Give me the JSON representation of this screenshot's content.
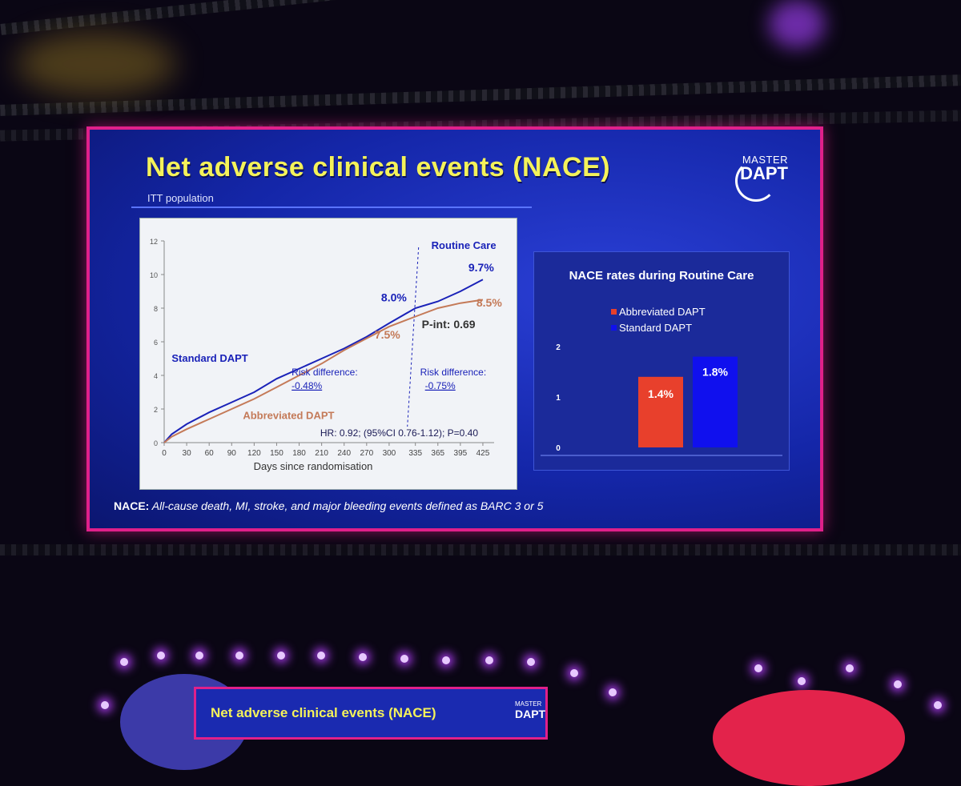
{
  "slide": {
    "title": "Net adverse clinical events (NACE)",
    "subtitle": "ITT population",
    "logo_line1": "MASTER",
    "logo_line2": "DAPT",
    "footer_label": "NACE:",
    "footer_text": " All-cause death, MI, stroke, and major bleeding events defined as BARC 3 or 5"
  },
  "mini_screen": {
    "title": "Net adverse clinical events (NACE)",
    "logo_line1": "MASTER",
    "logo_line2": "DAPT"
  },
  "colors": {
    "standard": "#1a22b8",
    "abbreviated": "#c47a58",
    "abbreviated_bar": "#e8402c",
    "standard_bar": "#1010ee",
    "title_yellow": "#f4f25a"
  },
  "chart_data": [
    {
      "type": "line",
      "title": "Routine Care",
      "xlabel": "Days since randomisation",
      "ylabel": "",
      "x_ticks": [
        0,
        30,
        60,
        90,
        120,
        150,
        180,
        210,
        240,
        270,
        300,
        335,
        365,
        395,
        425
      ],
      "y_ticks": [
        0,
        2,
        4,
        6,
        8,
        10,
        12
      ],
      "xlim": [
        0,
        440
      ],
      "ylim": [
        0,
        12
      ],
      "divider_day": 335,
      "series": [
        {
          "name": "Standard DAPT",
          "x": [
            0,
            10,
            30,
            60,
            90,
            120,
            150,
            180,
            210,
            240,
            270,
            300,
            335,
            365,
            395,
            425
          ],
          "values": [
            0,
            0.5,
            1.1,
            1.8,
            2.4,
            3.0,
            3.8,
            4.4,
            5.0,
            5.6,
            6.3,
            7.1,
            8.0,
            8.4,
            9.0,
            9.7
          ]
        },
        {
          "name": "Abbreviated DAPT",
          "x": [
            0,
            10,
            30,
            60,
            90,
            120,
            150,
            180,
            210,
            240,
            270,
            300,
            335,
            365,
            395,
            425
          ],
          "values": [
            0,
            0.35,
            0.8,
            1.4,
            2.0,
            2.6,
            3.3,
            4.0,
            4.7,
            5.5,
            6.2,
            6.9,
            7.5,
            8.0,
            8.3,
            8.5
          ]
        }
      ],
      "labels": {
        "standard_name": "Standard DAPT",
        "abbreviated_name": "Abbreviated DAPT",
        "std_335": "8.0%",
        "abb_335": "7.5%",
        "std_end": "9.7%",
        "abb_end": "8.5%",
        "p_int": "P-int: 0.69",
        "risk_label_1": "Risk difference:",
        "risk_value_1": "-0.48%",
        "risk_label_2": "Risk difference:",
        "risk_value_2": "-0.75%",
        "hr": "HR: 0.92; (95%CI 0.76-1.12); P=0.40"
      }
    },
    {
      "type": "bar",
      "title": "NACE rates during Routine Care",
      "categories": [
        "Abbreviated DAPT",
        "Standard DAPT"
      ],
      "values": [
        1.4,
        1.8
      ],
      "value_labels": [
        "1.4%",
        "1.8%"
      ],
      "y_ticks": [
        0,
        1,
        2
      ],
      "ylim": [
        0,
        2
      ],
      "legend": [
        "Abbreviated DAPT",
        "Standard DAPT"
      ]
    }
  ]
}
